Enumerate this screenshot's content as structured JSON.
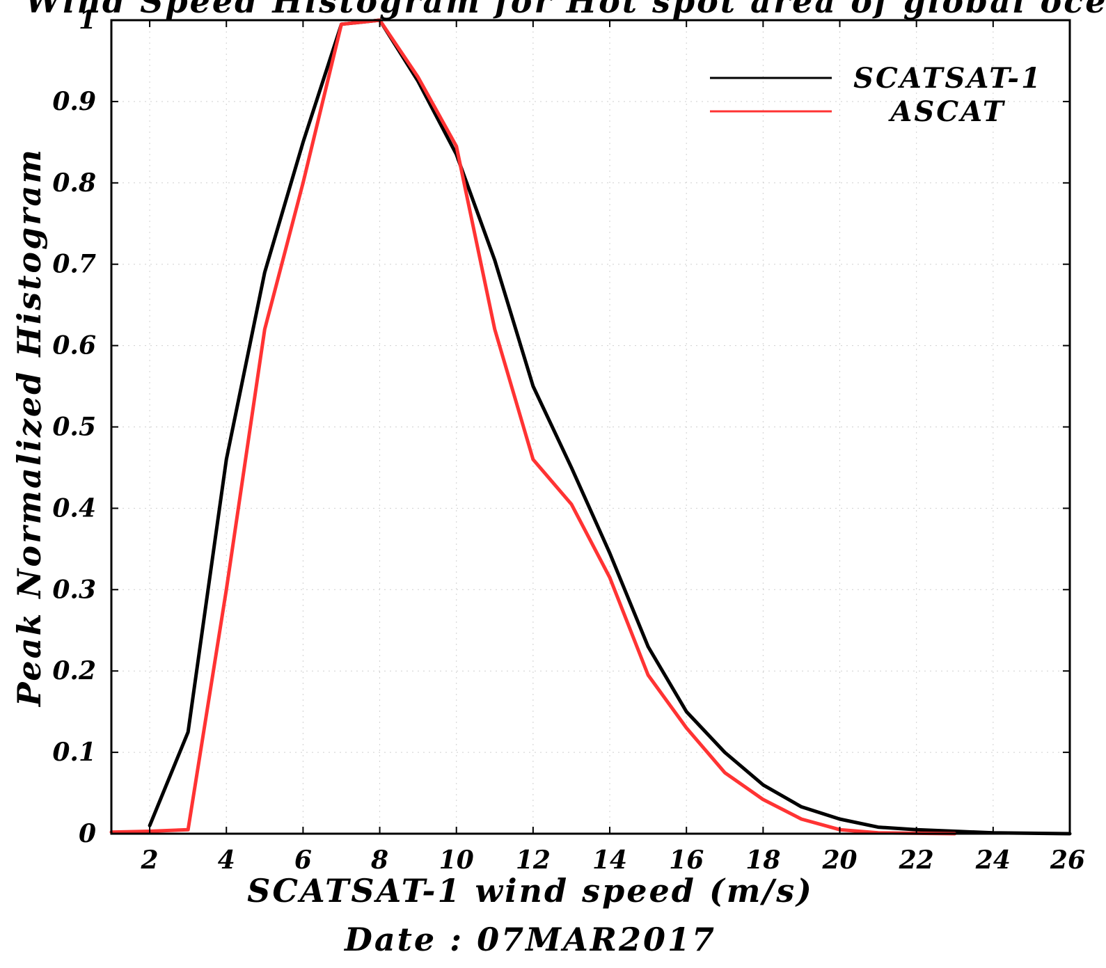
{
  "chart_data": {
    "type": "line",
    "title": "Wind Speed Histogram for Hot spot area of global ocean",
    "xlabel": "SCATSAT-1 wind speed (m/s)",
    "ylabel": "Peak Normalized Histogram",
    "date_label": "Date : 07MAR2017",
    "xlim": [
      1,
      26
    ],
    "ylim": [
      0,
      1
    ],
    "x_ticks": [
      2,
      4,
      6,
      8,
      10,
      12,
      14,
      16,
      18,
      20,
      22,
      24,
      26
    ],
    "y_ticks": [
      0,
      0.1,
      0.2,
      0.3,
      0.4,
      0.5,
      0.6,
      0.7,
      0.8,
      0.9,
      1
    ],
    "y_tick_labels": [
      "0",
      "0.1",
      "0.2",
      "0.3",
      "0.4",
      "0.5",
      "0.6",
      "0.7",
      "0.8",
      "0.9",
      "1"
    ],
    "grid": true,
    "legend_position": "top-right",
    "series": [
      {
        "name": "SCATSAT-1",
        "color": "#000000",
        "x": [
          2,
          3,
          4,
          5,
          6,
          7,
          8,
          9,
          10,
          11,
          12,
          13,
          14,
          15,
          16,
          17,
          18,
          19,
          20,
          21,
          22,
          23,
          24,
          25,
          26
        ],
        "y": [
          0.01,
          0.125,
          0.46,
          0.69,
          0.85,
          0.995,
          1.0,
          0.925,
          0.835,
          0.705,
          0.55,
          0.45,
          0.345,
          0.23,
          0.15,
          0.1,
          0.06,
          0.033,
          0.018,
          0.008,
          0.005,
          0.003,
          0.001,
          0.0005,
          0.0
        ]
      },
      {
        "name": "ASCAT",
        "color": "#ff3333",
        "x": [
          1,
          2,
          3,
          4,
          5,
          6,
          7,
          8,
          9,
          10,
          11,
          12,
          13,
          14,
          15,
          16,
          17,
          18,
          19,
          20,
          21,
          22,
          23
        ],
        "y": [
          0.002,
          0.003,
          0.005,
          0.3,
          0.62,
          0.8,
          0.995,
          1.0,
          0.93,
          0.845,
          0.62,
          0.46,
          0.405,
          0.315,
          0.195,
          0.13,
          0.075,
          0.042,
          0.018,
          0.005,
          0.001,
          0.0005,
          0.0
        ]
      }
    ]
  }
}
